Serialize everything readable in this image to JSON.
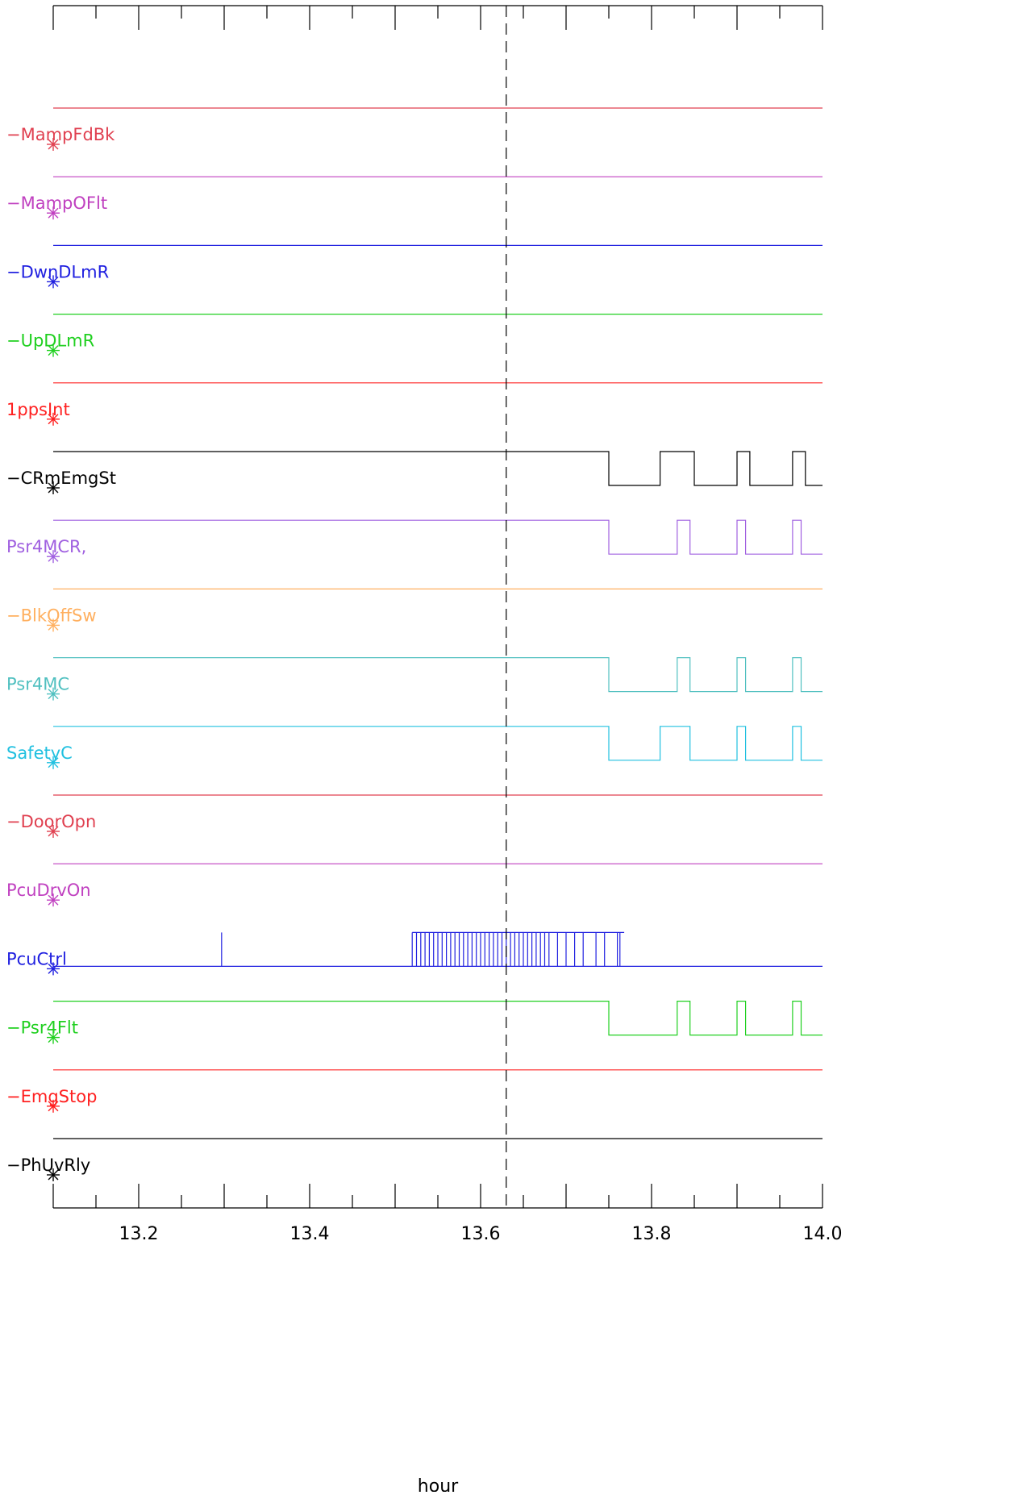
{
  "chart_data": {
    "type": "line",
    "title": "",
    "xlabel": "hour",
    "ylabel": "",
    "xlim": [
      13.1,
      14.0
    ],
    "xticks": [
      {
        "value": 13.2,
        "label": "13.2"
      },
      {
        "value": 13.4,
        "label": "13.4"
      },
      {
        "value": 13.6,
        "label": "13.6"
      },
      {
        "value": 13.8,
        "label": "13.8"
      },
      {
        "value": 14.0,
        "label": "14.0"
      }
    ],
    "marker_line_x": 13.63,
    "grid": false,
    "series": [
      {
        "name": "-MampFdBk",
        "color": "#e04050",
        "transitions": []
      },
      {
        "name": "-MampOFlt",
        "color": "#c040c0",
        "transitions": []
      },
      {
        "name": "-DwnDLmR",
        "color": "#2020e0",
        "transitions": []
      },
      {
        "name": "-UpDLmR",
        "color": "#20d020",
        "transitions": []
      },
      {
        "name": "1ppsInt",
        "color": "#ff2020",
        "transitions": []
      },
      {
        "name": "-CRmEmgSt",
        "color": "#000000",
        "transitions": [
          13.75,
          13.81,
          13.85,
          13.9,
          13.915,
          13.965,
          13.98
        ]
      },
      {
        "name": "Psr4MCR,",
        "color": "#a060e0",
        "transitions": [
          13.75,
          13.83,
          13.845,
          13.9,
          13.91,
          13.965,
          13.975
        ]
      },
      {
        "name": "-BlkOffSw",
        "color": "#ffb060",
        "transitions": []
      },
      {
        "name": "Psr4MC",
        "color": "#50c0c0",
        "transitions": [
          13.75,
          13.83,
          13.845,
          13.9,
          13.91,
          13.965,
          13.975
        ]
      },
      {
        "name": "SafetyC",
        "color": "#20c0e0",
        "transitions": [
          13.75,
          13.81,
          13.845,
          13.9,
          13.91,
          13.965,
          13.975
        ]
      },
      {
        "name": "-DoorOpn",
        "color": "#e04050",
        "transitions": []
      },
      {
        "name": "PcuDrvOn",
        "color": "#c040c0",
        "transitions": []
      },
      {
        "name": "PcuCtrl",
        "color": "#2020e0",
        "transitions": []
      },
      {
        "name": "-Psr4Flt",
        "color": "#20d020",
        "transitions": [
          13.75,
          13.83,
          13.845,
          13.9,
          13.91,
          13.965,
          13.975
        ]
      },
      {
        "name": "-EmgStop",
        "color": "#ff2020",
        "transitions": []
      },
      {
        "name": "-PhUvRly",
        "color": "#000000",
        "transitions": []
      }
    ],
    "pcuctrl_spikes": [
      13.297,
      13.52,
      13.525,
      13.53,
      13.535,
      13.54,
      13.545,
      13.55,
      13.555,
      13.56,
      13.565,
      13.57,
      13.575,
      13.58,
      13.585,
      13.59,
      13.595,
      13.6,
      13.605,
      13.61,
      13.615,
      13.62,
      13.625,
      13.63,
      13.635,
      13.64,
      13.645,
      13.65,
      13.655,
      13.66,
      13.665,
      13.67,
      13.675,
      13.68,
      13.69,
      13.7,
      13.71,
      13.72,
      13.735,
      13.745,
      13.76,
      13.763
    ]
  }
}
